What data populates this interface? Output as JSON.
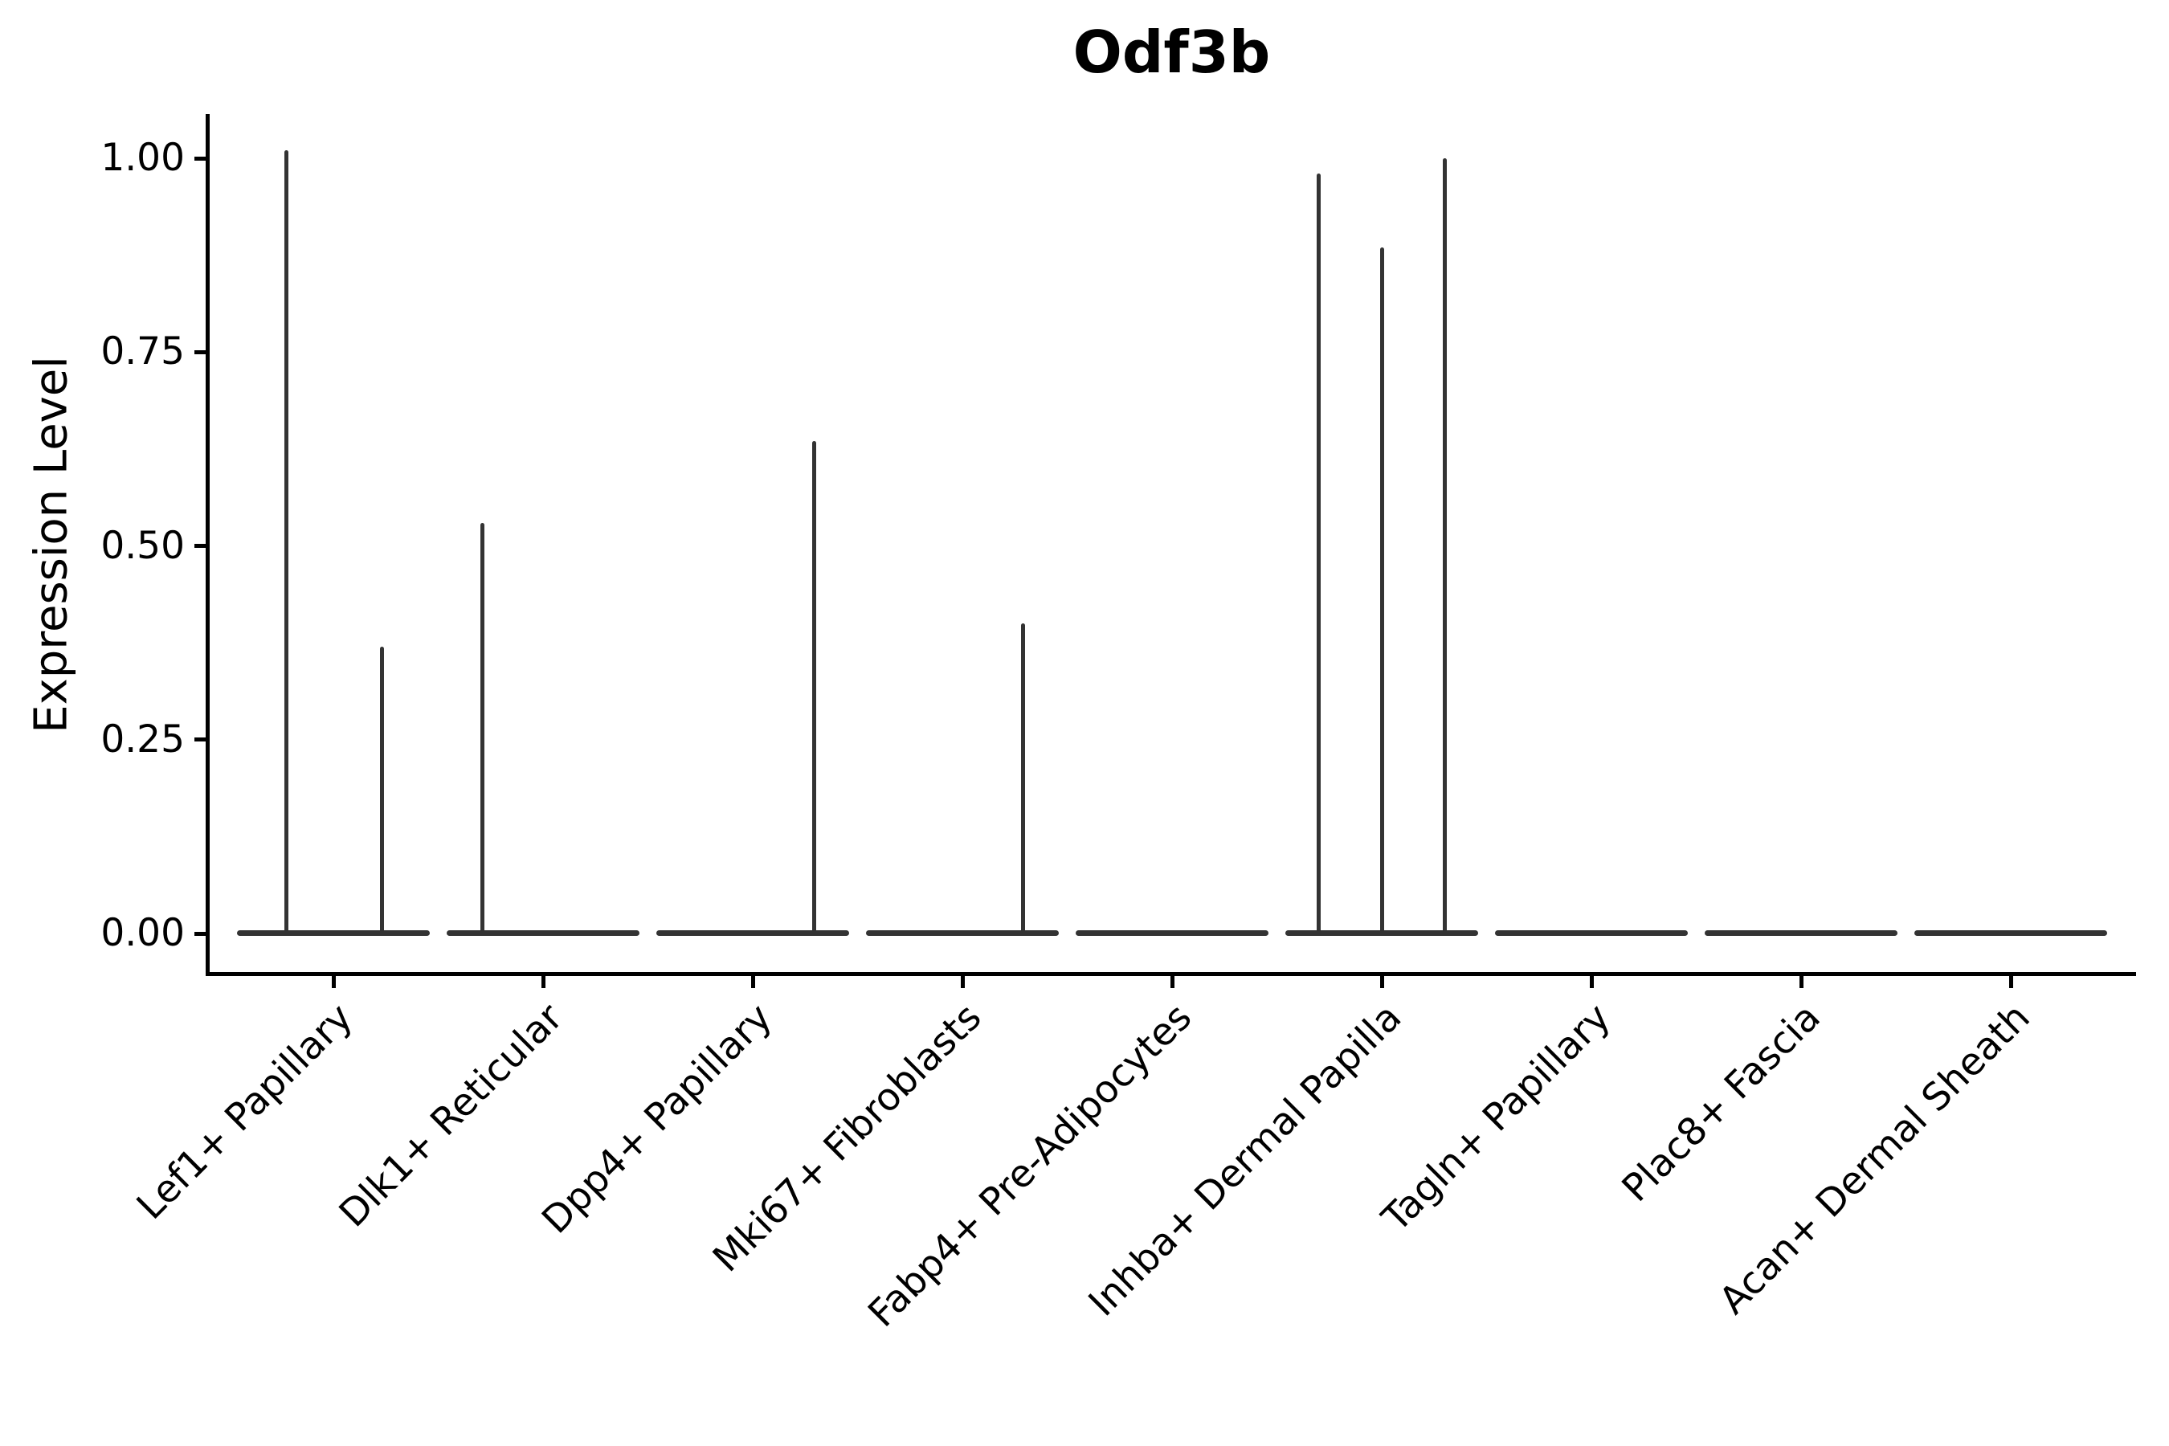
{
  "figure": {
    "title": "Odf3b",
    "background_color": "#ffffff",
    "text_color": "#000000",
    "axis_color": "#000000",
    "violin_color": "#333333"
  },
  "chart_data": {
    "type": "violin",
    "title": "Odf3b",
    "xlabel": "",
    "ylabel": "Expression Level",
    "categories": [
      "Lef1+ Papillary",
      "Dlk1+ Reticular",
      "Dpp4+ Papillary",
      "Mki67+ Fibroblasts",
      "Fabp4+ Pre-Adipocytes",
      "Inhba+ Dermal Papilla",
      "Tagln+ Papillary",
      "Plac8+ Fascia",
      "Acan+ Dermal Sheath"
    ],
    "ylim": [
      0,
      1.05
    ],
    "ytick_values": [
      0,
      0.25,
      0.5,
      0.75,
      1.0
    ],
    "ytick_labels": [
      "0.00",
      "0.25",
      "0.50",
      "0.75",
      "1.00"
    ],
    "grid": false,
    "legend": "none",
    "description": "Violin plot of Odf3b expression; each cell type shows a flat density body at 0 with thin vertical spikes marking rare expressing cells.",
    "baseline_value": 0,
    "series": [
      {
        "name": "Lef1+ Papillary",
        "spikes": [
          {
            "value": 1.01,
            "offset": -0.225
          },
          {
            "value": 0.37,
            "offset": 0.23
          }
        ]
      },
      {
        "name": "Dlk1+ Reticular",
        "spikes": [
          {
            "value": 0.53,
            "offset": -0.29
          }
        ]
      },
      {
        "name": "Dpp4+ Papillary",
        "spikes": [
          {
            "value": 0.635,
            "offset": 0.295
          }
        ]
      },
      {
        "name": "Mki67+ Fibroblasts",
        "spikes": [
          {
            "value": 0.4,
            "offset": 0.29
          }
        ]
      },
      {
        "name": "Fabp4+ Pre-Adipocytes",
        "spikes": []
      },
      {
        "name": "Inhba+ Dermal Papilla",
        "spikes": [
          {
            "value": 0.98,
            "offset": -0.3
          },
          {
            "value": 0.885,
            "offset": 0.0
          },
          {
            "value": 1.0,
            "offset": 0.3
          }
        ]
      },
      {
        "name": "Tagln+ Papillary",
        "spikes": []
      },
      {
        "name": "Plac8+ Fascia",
        "spikes": []
      },
      {
        "name": "Acan+ Dermal Sheath",
        "spikes": []
      }
    ]
  }
}
